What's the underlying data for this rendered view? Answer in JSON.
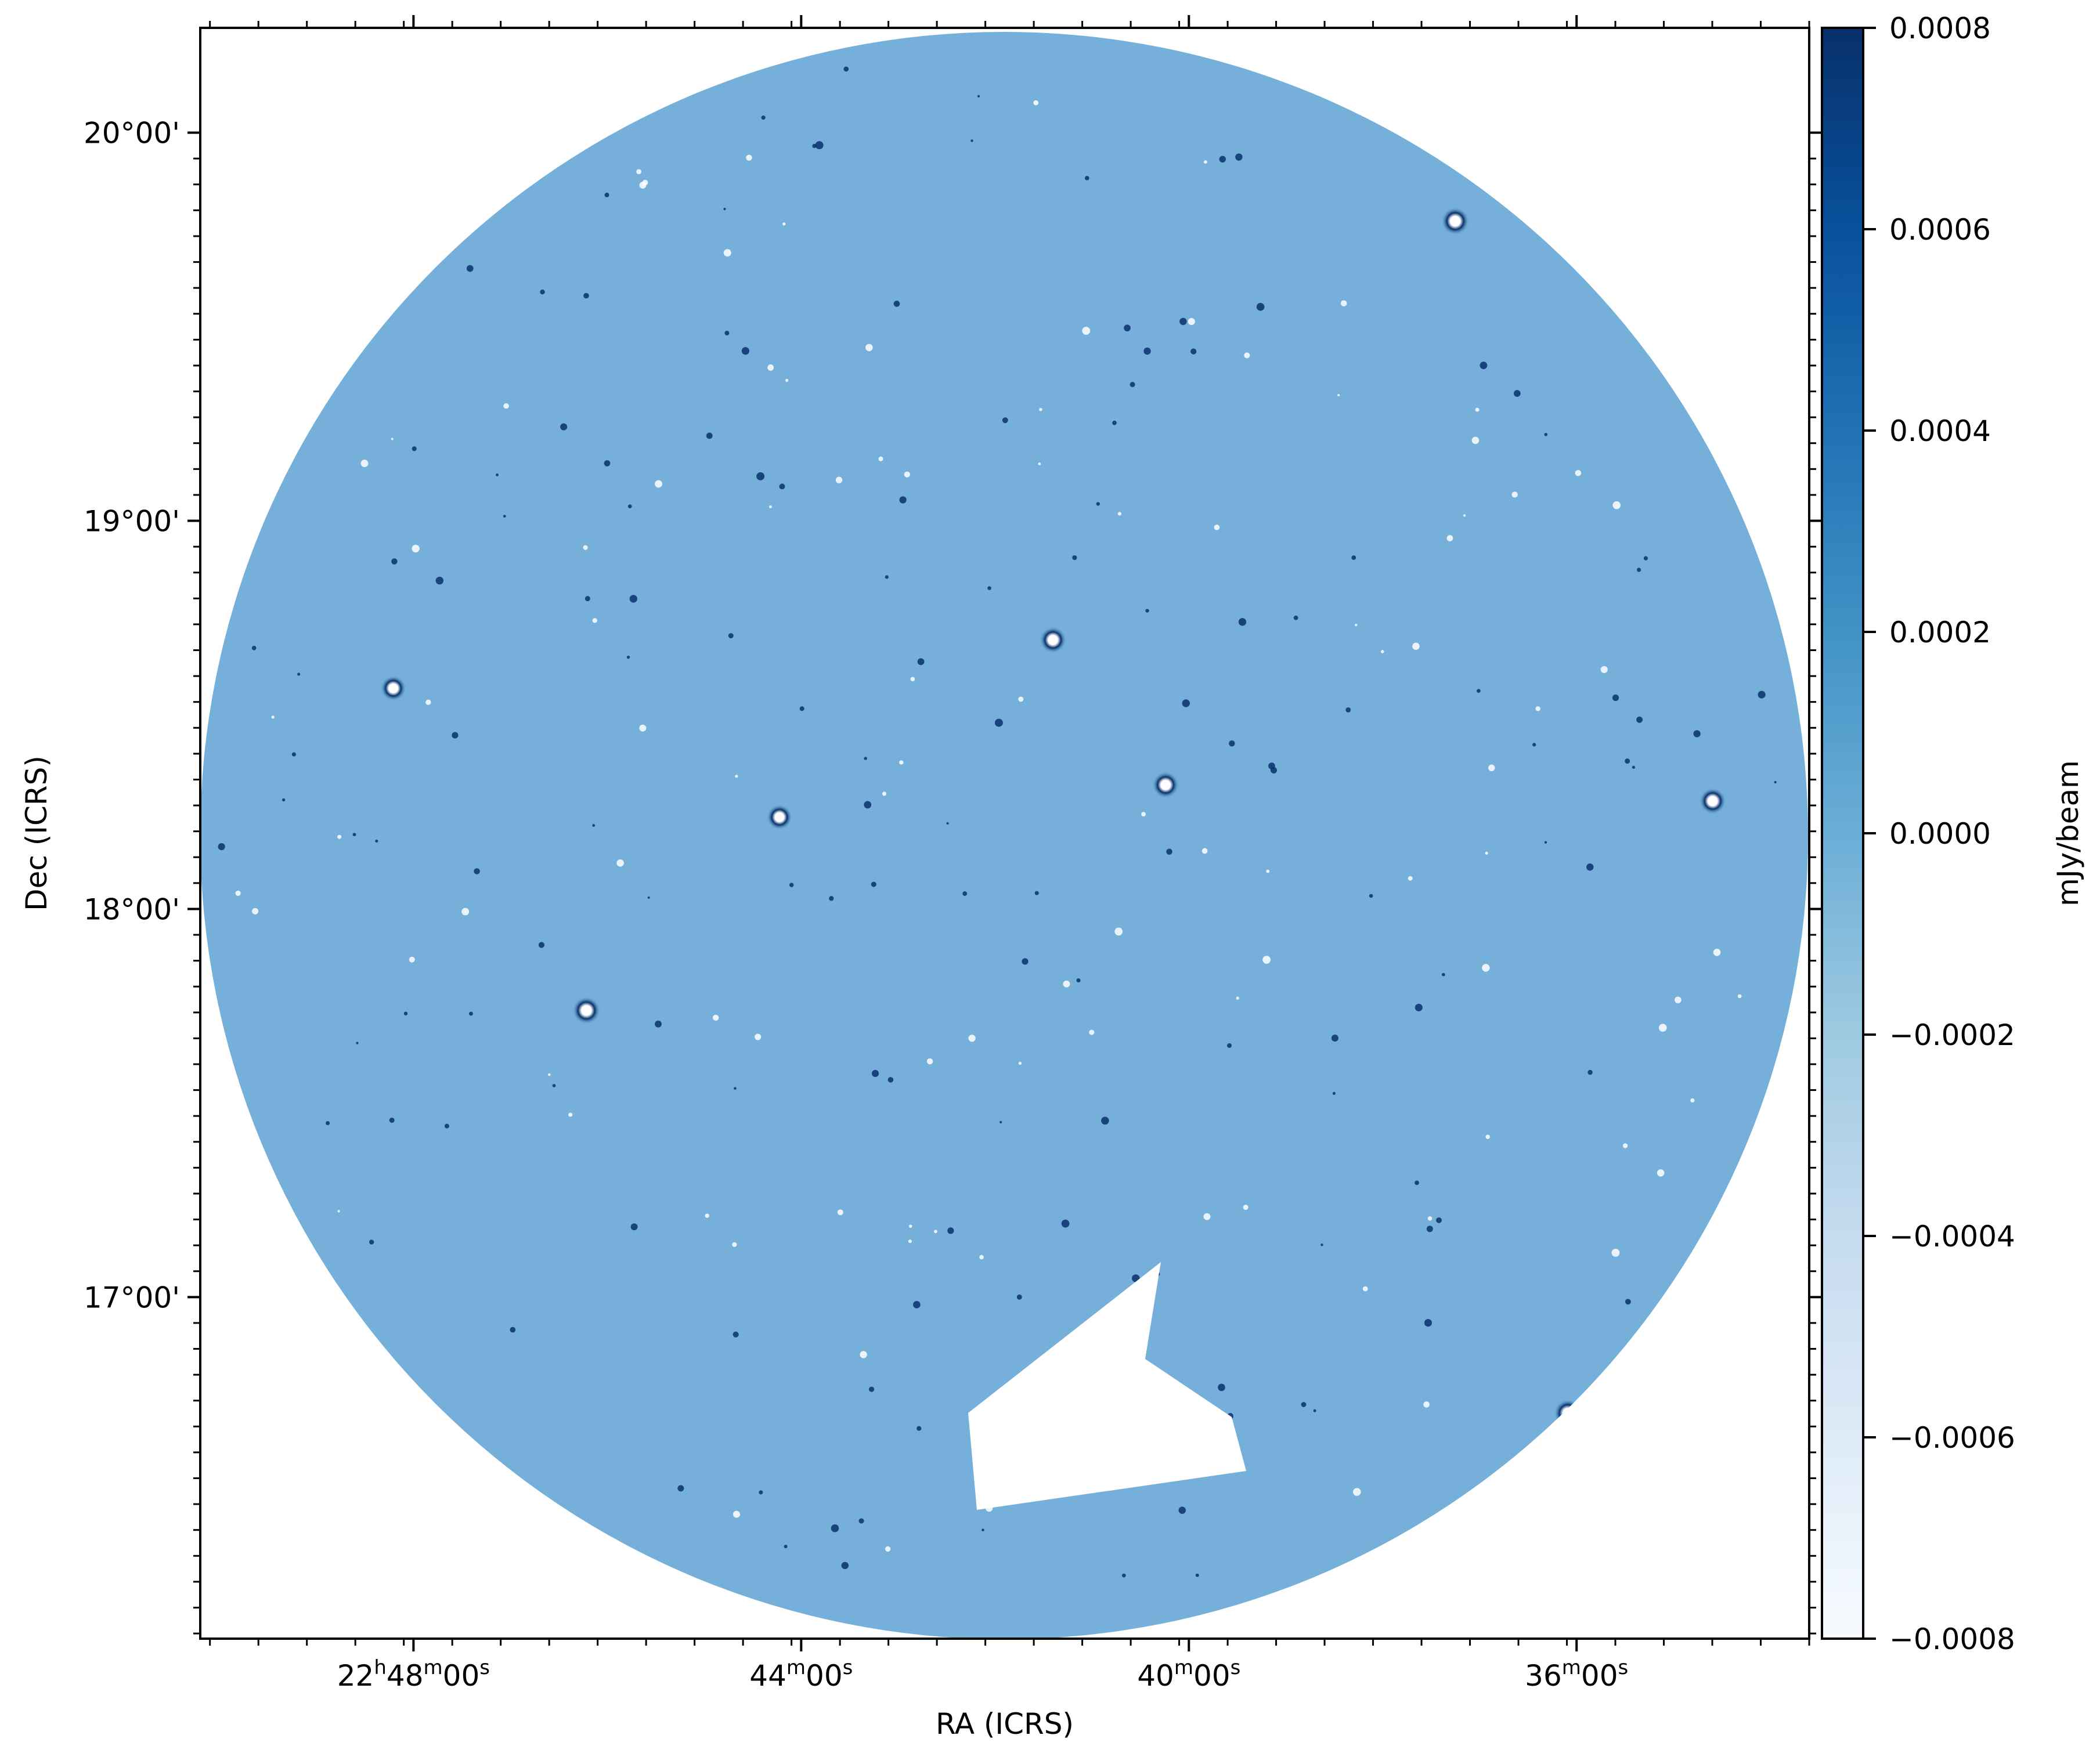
{
  "chart_data": {
    "type": "heatmap",
    "subtype": "radio-sky-image",
    "title": "",
    "xlabel": "RA (ICRS)",
    "ylabel": "Dec (ICRS)",
    "colorbar_label": "mJy/beam",
    "colormap": "Blues",
    "colormap_stops": [
      "#f7fbff",
      "#deebf7",
      "#c6dbef",
      "#9ecae1",
      "#6baed6",
      "#4292c6",
      "#2171b5",
      "#08519c",
      "#08306b"
    ],
    "clim": [
      -0.0008,
      0.0008
    ],
    "x_ticks": [
      {
        "h": "22",
        "m": "48",
        "s": "00",
        "label": "22h48m00s",
        "value_deg": 342.0
      },
      {
        "h": "",
        "m": "44",
        "s": "00",
        "label": "44m00s",
        "value_deg": 341.0
      },
      {
        "h": "",
        "m": "40",
        "s": "00",
        "label": "40m00s",
        "value_deg": 340.0
      },
      {
        "h": "",
        "m": "36",
        "s": "00",
        "label": "36m00s",
        "value_deg": 339.0
      }
    ],
    "y_ticks": [
      {
        "label": "20°00'",
        "value_deg": 20.0
      },
      {
        "label": "19°00'",
        "value_deg": 19.0
      },
      {
        "label": "18°00'",
        "value_deg": 18.0
      },
      {
        "label": "17°00'",
        "value_deg": 17.0
      }
    ],
    "colorbar_ticks": [
      "0.0008",
      "0.0006",
      "0.0004",
      "0.0002",
      "0.0000",
      "−0.0002",
      "−0.0004",
      "−0.0006",
      "−0.0008"
    ],
    "colorbar_tick_values": [
      0.0008,
      0.0006,
      0.0004,
      0.0002,
      0.0,
      -0.0002,
      -0.0004,
      -0.0006,
      -0.0008
    ],
    "grid": false,
    "legend": "none",
    "background_level": 2e-05,
    "sources": [
      {
        "ra_frac": 0.78,
        "dec_frac": 0.12,
        "strength": 1.0
      },
      {
        "ra_frac": 0.53,
        "dec_frac": 0.38,
        "strength": 0.9
      },
      {
        "ra_frac": 0.6,
        "dec_frac": 0.47,
        "strength": 0.9
      },
      {
        "ra_frac": 0.94,
        "dec_frac": 0.48,
        "strength": 0.9
      },
      {
        "ra_frac": 0.24,
        "dec_frac": 0.61,
        "strength": 1.0
      },
      {
        "ra_frac": 0.85,
        "dec_frac": 0.86,
        "strength": 1.0
      },
      {
        "ra_frac": 0.36,
        "dec_frac": 0.49,
        "strength": 0.8
      },
      {
        "ra_frac": 0.12,
        "dec_frac": 0.41,
        "strength": 0.8
      }
    ]
  }
}
